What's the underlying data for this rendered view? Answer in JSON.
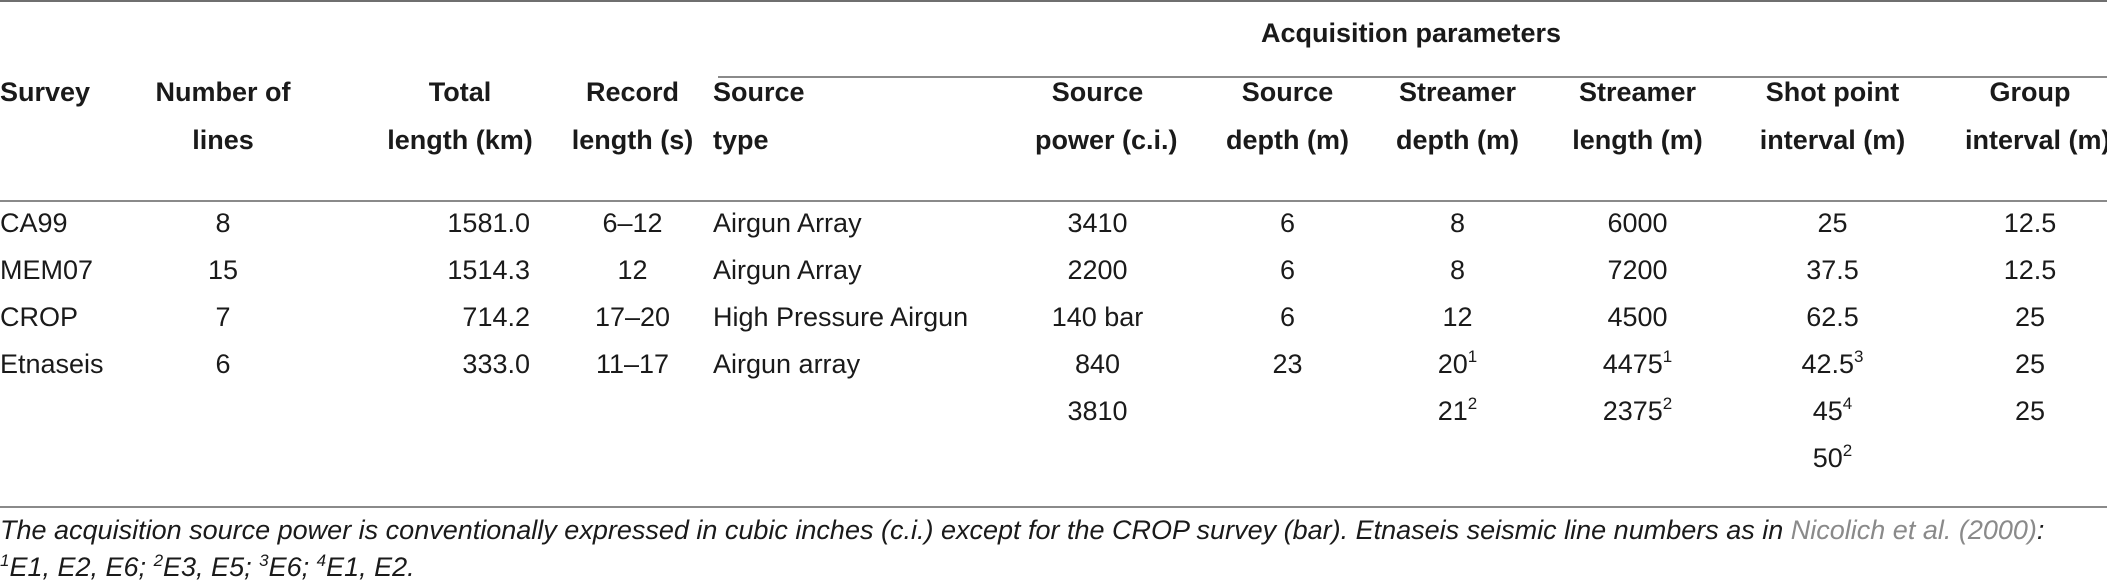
{
  "table": {
    "group_header": "Acquisition parameters",
    "columns": [
      {
        "line1": "Survey",
        "line2": ""
      },
      {
        "line1": "Number of",
        "line2": "lines"
      },
      {
        "line1": "Total",
        "line2": "length (km)"
      },
      {
        "line1": "Record",
        "line2": "length (s)"
      },
      {
        "line1": "Source",
        "line2": "type"
      },
      {
        "line1": "Source",
        "line2": "power (c.i.)"
      },
      {
        "line1": "Source",
        "line2": "depth (m)"
      },
      {
        "line1": "Streamer",
        "line2": "depth (m)"
      },
      {
        "line1": "Streamer",
        "line2": "length (m)"
      },
      {
        "line1": "Shot point",
        "line2": "interval (m)"
      },
      {
        "line1": "Group",
        "line2": "interval (m)"
      }
    ],
    "rows": [
      [
        "CA99",
        "8",
        "1581.0",
        "6–12",
        "Airgun Array",
        "3410",
        "6",
        "8",
        "6000",
        "25",
        "12.5"
      ],
      [
        "MEM07",
        "15",
        "1514.3",
        "12",
        "Airgun Array",
        "2200",
        "6",
        "8",
        "7200",
        "37.5",
        "12.5"
      ],
      [
        "CROP",
        "7",
        "714.2",
        "17–20",
        "High Pressure Airgun",
        "140 bar",
        "6",
        "12",
        "4500",
        "62.5",
        "25"
      ],
      [
        "Etnaseis",
        "6",
        "333.0",
        "11–17",
        "Airgun array",
        "840",
        "23",
        "20",
        "4475",
        "42.5",
        "25"
      ],
      [
        "",
        "",
        "",
        "",
        "",
        "3810",
        "",
        "21",
        "2375",
        "45",
        "25"
      ],
      [
        "",
        "",
        "",
        "",
        "",
        "",
        "",
        "",
        "",
        "50",
        ""
      ]
    ],
    "superscripts": {
      "r3c7": "1",
      "r3c8": "1",
      "r3c9": "3",
      "r4c7": "2",
      "r4c8": "2",
      "r4c9": "4",
      "r5c9": "2"
    }
  },
  "footnote": {
    "text1": "The acquisition source power is conventionally expressed in cubic inches (c.i.) except for the CROP survey (bar). Etnaseis seismic line numbers as in ",
    "ref": "Nicolich et al. (2000)",
    "text2": ":",
    "sup1": "1",
    "t1": "E1, E2, E6; ",
    "sup2": "2",
    "t2": "E3, E5; ",
    "sup3": "3",
    "t3": "E6; ",
    "sup4": "4",
    "t4": "E1, E2."
  }
}
